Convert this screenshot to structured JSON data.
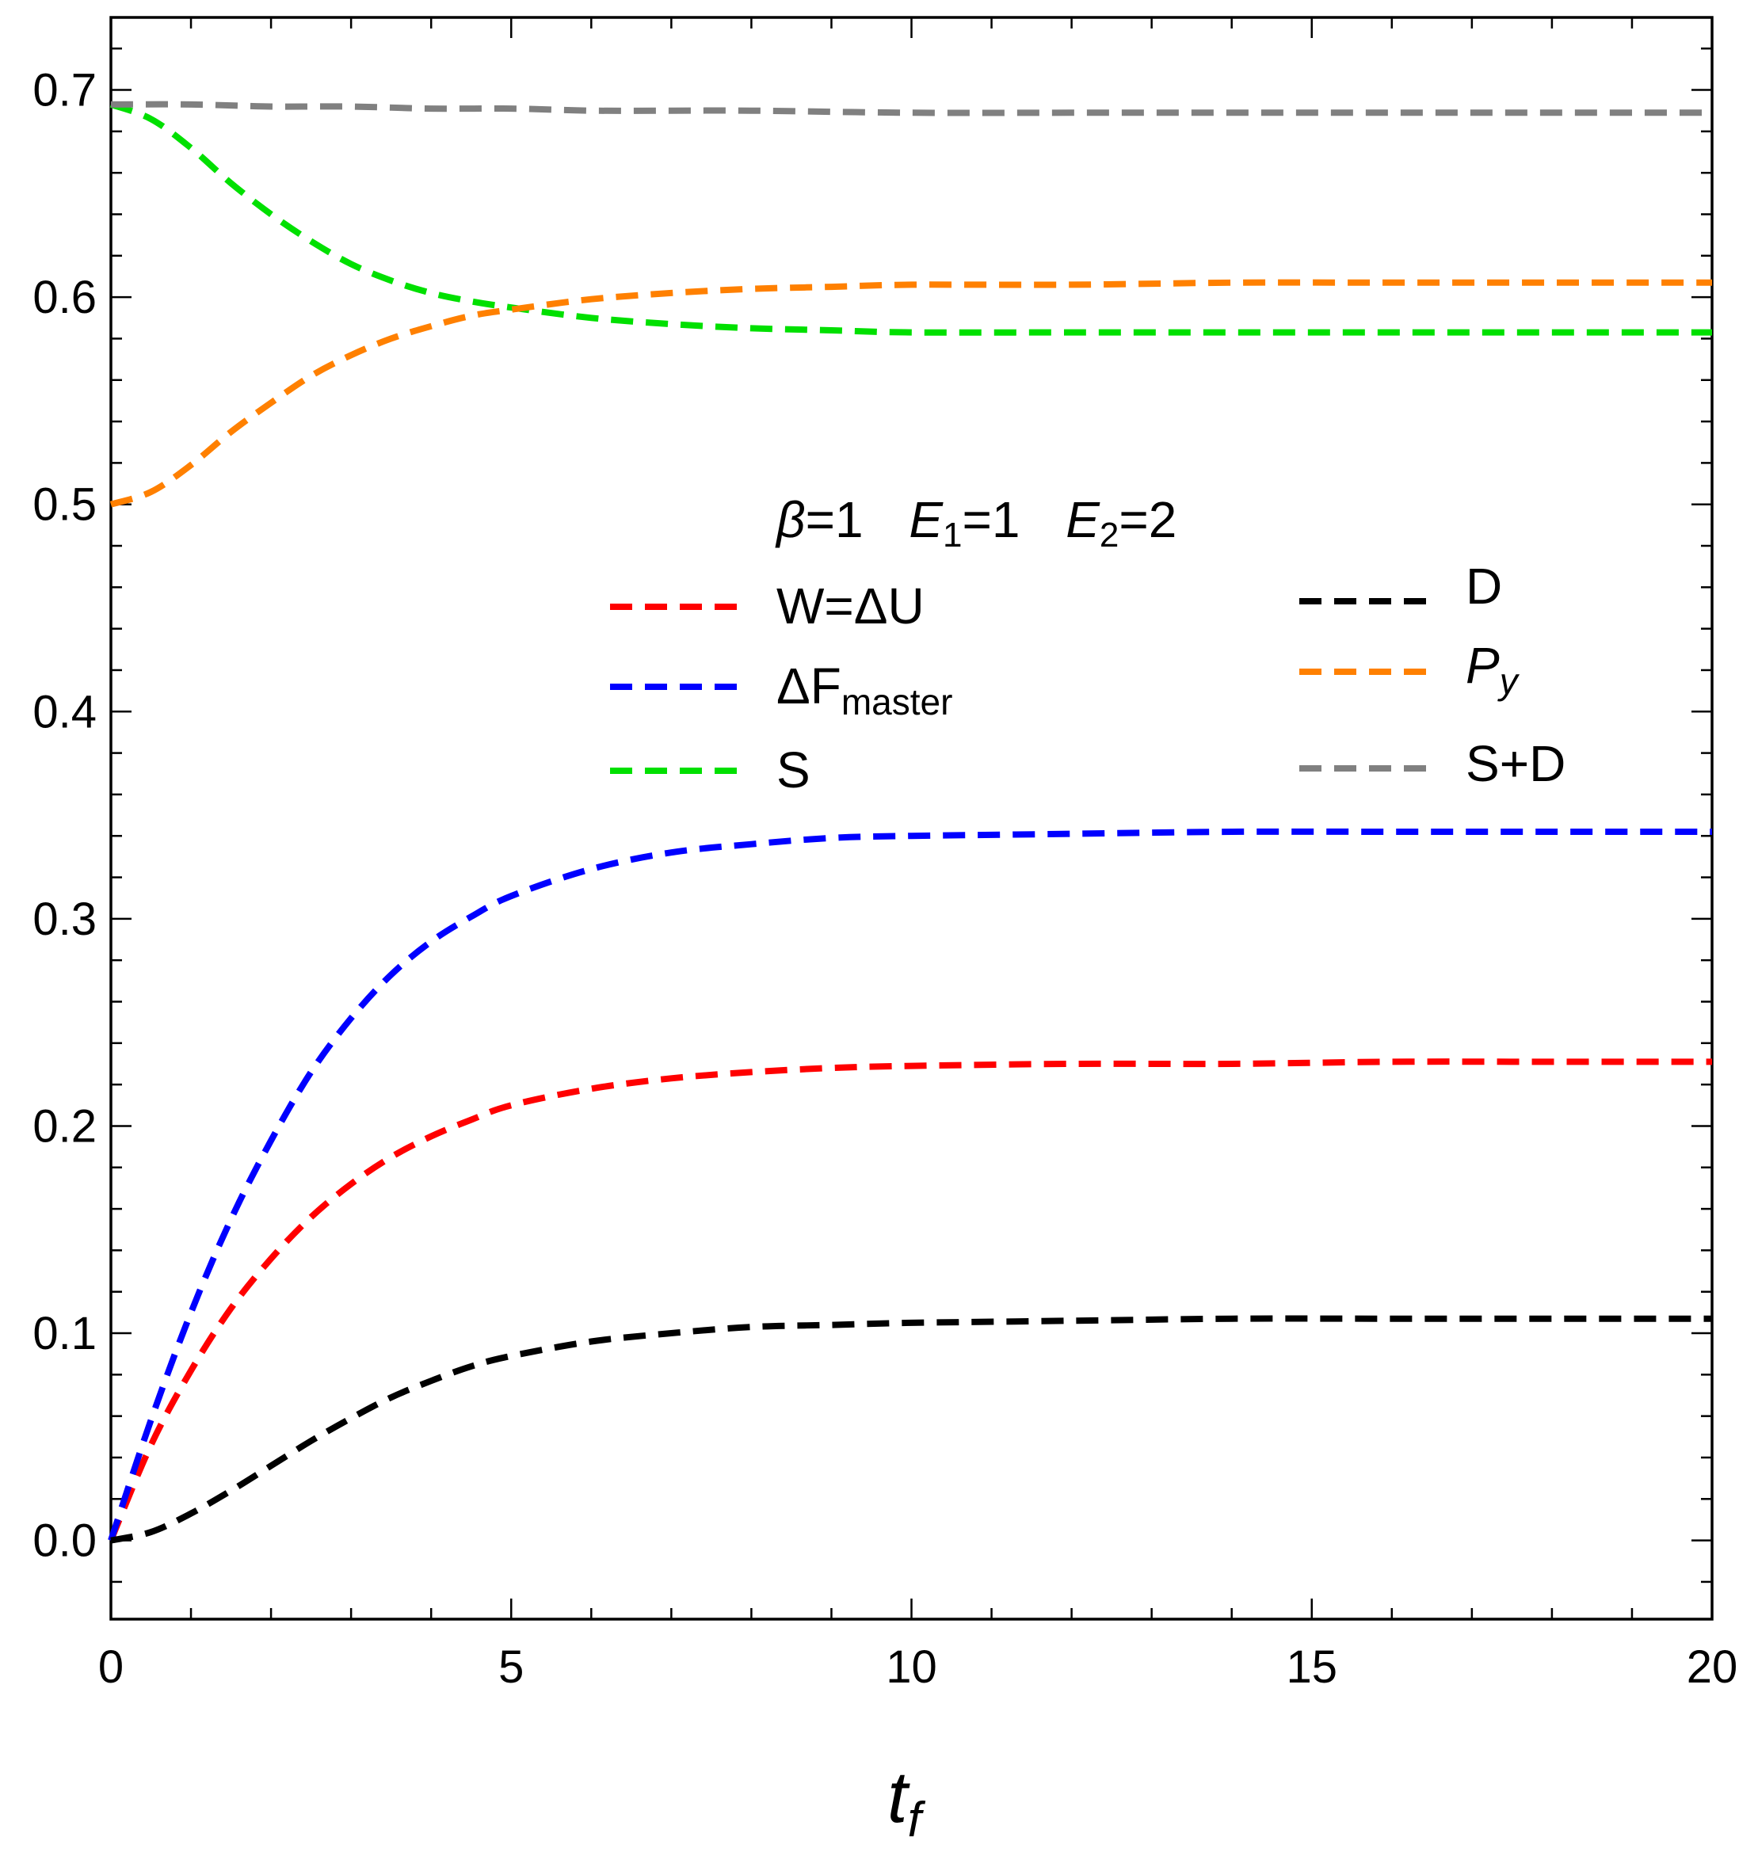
{
  "chart_data": {
    "type": "line",
    "xlabel": "t",
    "xlabel_subscript": "f",
    "xlim": [
      0,
      20
    ],
    "ylim": [
      -0.038,
      0.735
    ],
    "x_ticks": [
      0,
      5,
      10,
      15,
      20
    ],
    "x_tick_labels": [
      "0",
      "5",
      "10",
      "15",
      "20"
    ],
    "y_ticks": [
      0.0,
      0.1,
      0.2,
      0.3,
      0.4,
      0.5,
      0.6,
      0.7
    ],
    "y_tick_labels": [
      "0.0",
      "0.1",
      "0.2",
      "0.3",
      "0.4",
      "0.5",
      "0.6",
      "0.7"
    ],
    "parameters": {
      "beta_symbol": "β",
      "beta_text": "=1",
      "e1_symbol": "E",
      "e1_sub": "1",
      "e1_text": "=1",
      "e2_symbol": "E",
      "e2_sub": "2",
      "e2_text": "=2"
    },
    "legend": {
      "w": "W=ΔU",
      "df_main": "ΔF",
      "df_sub": "master",
      "s": "S",
      "d": "D",
      "py_main": "P",
      "py_sub": "y",
      "sd": "S+D"
    },
    "series": [
      {
        "key": "w",
        "name": "W=ΔU",
        "color": "#ff0000",
        "x": [
          0,
          0.5,
          1,
          1.5,
          2,
          2.5,
          3,
          3.5,
          4,
          4.5,
          5,
          6,
          7,
          8,
          9,
          10,
          12,
          14,
          16,
          18,
          20
        ],
        "y": [
          0,
          0.046,
          0.082,
          0.112,
          0.136,
          0.156,
          0.172,
          0.185,
          0.195,
          0.203,
          0.21,
          0.218,
          0.223,
          0.226,
          0.228,
          0.229,
          0.23,
          0.23,
          0.231,
          0.231,
          0.231
        ]
      },
      {
        "key": "df",
        "name": "ΔF_master",
        "color": "#0000ff",
        "x": [
          0,
          0.5,
          1,
          1.5,
          2,
          2.5,
          3,
          3.5,
          4,
          4.5,
          5,
          6,
          7,
          8,
          9,
          10,
          12,
          14,
          16,
          18,
          20
        ],
        "y": [
          0,
          0.058,
          0.11,
          0.155,
          0.193,
          0.226,
          0.252,
          0.273,
          0.289,
          0.301,
          0.311,
          0.324,
          0.332,
          0.336,
          0.339,
          0.34,
          0.341,
          0.342,
          0.342,
          0.342,
          0.342
        ]
      },
      {
        "key": "s",
        "name": "S",
        "color": "#00e000",
        "x": [
          0,
          0.5,
          1,
          1.5,
          2,
          2.5,
          3,
          3.5,
          4,
          4.5,
          5,
          6,
          7,
          8,
          9,
          10,
          12,
          14,
          16,
          18,
          20
        ],
        "y": [
          0.693,
          0.686,
          0.672,
          0.655,
          0.64,
          0.627,
          0.616,
          0.608,
          0.602,
          0.598,
          0.595,
          0.59,
          0.587,
          0.585,
          0.584,
          0.583,
          0.583,
          0.583,
          0.583,
          0.583,
          0.583
        ]
      },
      {
        "key": "d",
        "name": "D",
        "color": "#000000",
        "x": [
          0,
          0.5,
          1,
          1.5,
          2,
          2.5,
          3,
          3.5,
          4,
          4.5,
          5,
          6,
          7,
          8,
          9,
          10,
          12,
          14,
          16,
          18,
          20
        ],
        "y": [
          0,
          0.004,
          0.013,
          0.024,
          0.036,
          0.048,
          0.059,
          0.069,
          0.077,
          0.084,
          0.089,
          0.096,
          0.1,
          0.103,
          0.104,
          0.105,
          0.106,
          0.107,
          0.107,
          0.107,
          0.107
        ]
      },
      {
        "key": "py",
        "name": "P_y",
        "color": "#ff8000",
        "x": [
          0,
          0.5,
          1,
          1.5,
          2,
          2.5,
          3,
          3.5,
          4,
          4.5,
          5,
          6,
          7,
          8,
          9,
          10,
          12,
          14,
          16,
          18,
          20
        ],
        "y": [
          0.5,
          0.506,
          0.519,
          0.535,
          0.549,
          0.562,
          0.572,
          0.58,
          0.586,
          0.591,
          0.594,
          0.599,
          0.602,
          0.604,
          0.605,
          0.606,
          0.606,
          0.607,
          0.607,
          0.607,
          0.607
        ]
      },
      {
        "key": "sd",
        "name": "S+D",
        "color": "#808080",
        "x": [
          0,
          1,
          2,
          3,
          4,
          5,
          6,
          7,
          8,
          10,
          12,
          14,
          16,
          18,
          20
        ],
        "y": [
          0.693,
          0.693,
          0.692,
          0.692,
          0.691,
          0.691,
          0.69,
          0.69,
          0.69,
          0.689,
          0.689,
          0.689,
          0.689,
          0.689,
          0.689
        ]
      }
    ]
  }
}
